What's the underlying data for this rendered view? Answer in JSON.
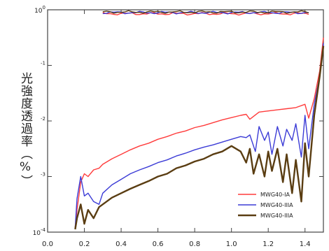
{
  "chart_data": {
    "type": "line",
    "title": "",
    "xlabel": "",
    "ylabel": "光強度透過率（%）",
    "xlim": [
      0.0,
      1.5
    ],
    "ylim_log": [
      -4,
      0
    ],
    "log_y": true,
    "grid": false,
    "legend_position": "bottom-right",
    "x_ticks": [
      "0.0",
      "0.2",
      "0.4",
      "0.6",
      "0.8",
      "1.0",
      "1.2",
      "1.4"
    ],
    "y_ticks": [
      {
        "base": "10",
        "exp": "0",
        "value": 0
      },
      {
        "base": "",
        "exp": "-1",
        "value": -1
      },
      {
        "base": "",
        "exp": "-2",
        "value": -2
      },
      {
        "base": "",
        "exp": "-3",
        "value": -3
      },
      {
        "base": "10",
        "exp": "-4",
        "value": -4
      }
    ],
    "series": [
      {
        "name": "MWG40-IA",
        "color": "#ff3b3b",
        "x": [
          0.15,
          0.16,
          0.18,
          0.2,
          0.22,
          0.25,
          0.28,
          0.3,
          0.35,
          0.4,
          0.45,
          0.5,
          0.55,
          0.6,
          0.65,
          0.7,
          0.75,
          0.8,
          0.85,
          0.9,
          0.95,
          1.0,
          1.05,
          1.08,
          1.1,
          1.15,
          1.2,
          1.25,
          1.3,
          1.35,
          1.4,
          1.42,
          1.45,
          1.48,
          1.5
        ],
        "y_log": [
          -3.92,
          -3.6,
          -3.1,
          -2.95,
          -3.0,
          -2.88,
          -2.85,
          -2.78,
          -2.68,
          -2.6,
          -2.52,
          -2.45,
          -2.4,
          -2.33,
          -2.28,
          -2.22,
          -2.18,
          -2.12,
          -2.08,
          -2.03,
          -1.98,
          -1.94,
          -1.9,
          -1.88,
          -1.97,
          -1.84,
          -1.82,
          -1.8,
          -1.78,
          -1.76,
          -1.7,
          -1.95,
          -1.6,
          -1.1,
          -0.5
        ],
        "top_y_log": -0.07
      },
      {
        "name": "MWG40-IIIA",
        "color": "#3b3bd6",
        "x": [
          0.15,
          0.16,
          0.18,
          0.2,
          0.22,
          0.25,
          0.28,
          0.3,
          0.35,
          0.4,
          0.45,
          0.5,
          0.55,
          0.6,
          0.65,
          0.7,
          0.75,
          0.8,
          0.85,
          0.9,
          0.95,
          1.0,
          1.05,
          1.08,
          1.1,
          1.13,
          1.15,
          1.18,
          1.2,
          1.22,
          1.25,
          1.28,
          1.3,
          1.33,
          1.35,
          1.38,
          1.4,
          1.42,
          1.45,
          1.48,
          1.5
        ],
        "y_log": [
          -3.92,
          -3.4,
          -3.0,
          -3.35,
          -3.3,
          -3.45,
          -3.5,
          -3.3,
          -3.15,
          -3.05,
          -2.95,
          -2.88,
          -2.82,
          -2.75,
          -2.7,
          -2.63,
          -2.58,
          -2.52,
          -2.47,
          -2.43,
          -2.38,
          -2.33,
          -2.28,
          -2.3,
          -2.25,
          -2.55,
          -2.1,
          -2.35,
          -2.2,
          -2.6,
          -2.1,
          -2.45,
          -2.15,
          -2.35,
          -2.05,
          -2.65,
          -1.9,
          -2.5,
          -1.7,
          -1.2,
          -0.6
        ],
        "top_y_log": -0.05
      },
      {
        "name": "MWG40-IIIA",
        "color": "#5a3d12",
        "x": [
          0.15,
          0.16,
          0.18,
          0.2,
          0.22,
          0.25,
          0.28,
          0.3,
          0.35,
          0.4,
          0.45,
          0.5,
          0.55,
          0.6,
          0.65,
          0.7,
          0.75,
          0.8,
          0.85,
          0.9,
          0.95,
          1.0,
          1.05,
          1.08,
          1.1,
          1.12,
          1.15,
          1.18,
          1.2,
          1.22,
          1.25,
          1.28,
          1.3,
          1.33,
          1.35,
          1.38,
          1.4,
          1.42,
          1.45,
          1.48,
          1.5
        ],
        "y_log": [
          -3.95,
          -3.75,
          -3.5,
          -3.85,
          -3.6,
          -3.75,
          -3.55,
          -3.5,
          -3.38,
          -3.3,
          -3.22,
          -3.15,
          -3.08,
          -3.0,
          -2.95,
          -2.85,
          -2.8,
          -2.73,
          -2.68,
          -2.6,
          -2.55,
          -2.45,
          -2.55,
          -2.75,
          -2.5,
          -2.95,
          -2.6,
          -3.0,
          -2.55,
          -2.9,
          -2.5,
          -3.1,
          -2.6,
          -3.3,
          -2.7,
          -3.45,
          -2.4,
          -3.0,
          -1.9,
          -1.2,
          -0.65
        ],
        "top_y_log": -0.04
      }
    ]
  }
}
